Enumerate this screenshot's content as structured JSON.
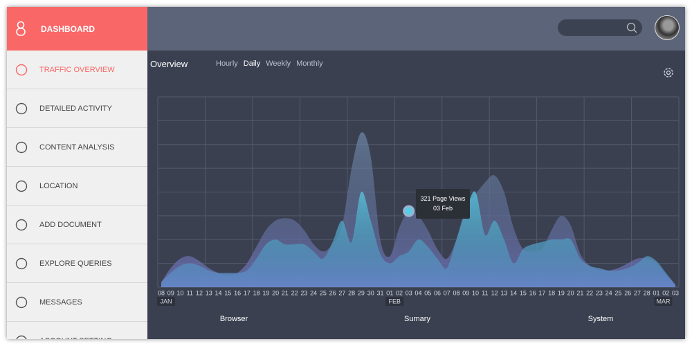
{
  "sidebar": {
    "title": "DASHBOARD",
    "items": [
      "TRAFFIC OVERVIEW",
      "DETAILED ACTIVITY",
      "CONTENT ANALYSIS",
      "LOCATION",
      "ADD DOCUMENT",
      "EXPLORE QUERIES",
      "MESSAGES",
      "ACCOUNT SETTING"
    ]
  },
  "overview": {
    "title": "Overview",
    "tabs": [
      "Hourly",
      "Daily",
      "Weekly",
      "Monthly"
    ]
  },
  "chart_data": {
    "type": "area",
    "categories": [
      "08",
      "09",
      "10",
      "11",
      "12",
      "13",
      "14",
      "15",
      "16",
      "17",
      "18",
      "19",
      "20",
      "21",
      "22",
      "23",
      "24",
      "25",
      "26",
      "27",
      "28",
      "29",
      "30",
      "31",
      "01",
      "02",
      "03",
      "04",
      "05",
      "06",
      "07",
      "08",
      "09",
      "10",
      "11",
      "12",
      "13",
      "14",
      "15",
      "16",
      "17",
      "18",
      "19",
      "20",
      "21",
      "22",
      "23",
      "24",
      "25",
      "26",
      "27",
      "28",
      "01",
      "02",
      "03"
    ],
    "month_labels": [
      "JAN",
      "FEB",
      "MAR"
    ],
    "ylim": [
      0,
      8
    ],
    "series": [
      {
        "color": "#7f9cc4",
        "values": [
          0.2,
          0.8,
          1.2,
          1.3,
          1.1,
          0.8,
          0.6,
          0.5,
          0.6,
          1.0,
          1.7,
          2.4,
          2.8,
          2.9,
          2.8,
          2.4,
          1.8,
          1.5,
          1.8,
          2.6,
          5.0,
          6.5,
          5.5,
          2.0,
          1.3,
          2.5,
          3.2,
          3.0,
          2.4,
          1.6,
          1.2,
          2.0,
          3.4,
          3.9,
          4.4,
          4.7,
          4.0,
          2.5,
          1.6,
          1.5,
          1.6,
          2.4,
          3.0,
          2.6,
          1.4,
          0.9,
          0.7,
          0.7,
          0.8,
          1.0,
          1.2,
          1.2,
          1.0,
          0.5,
          0.1
        ]
      },
      {
        "color": "#5ccbe8",
        "values": [
          0.2,
          0.6,
          0.9,
          1.0,
          0.9,
          0.7,
          0.6,
          0.6,
          0.6,
          0.7,
          1.2,
          1.8,
          2.0,
          1.8,
          1.8,
          1.8,
          1.5,
          1.2,
          1.9,
          2.8,
          1.9,
          4.0,
          2.8,
          1.4,
          1.0,
          1.3,
          1.5,
          2.0,
          1.7,
          1.2,
          0.8,
          2.0,
          3.2,
          4.0,
          2.2,
          2.8,
          2.0,
          1.0,
          1.6,
          1.8,
          1.9,
          2.0,
          2.0,
          2.0,
          1.2,
          0.9,
          0.8,
          0.7,
          0.7,
          0.8,
          1.0,
          1.3,
          1.1,
          0.6,
          0.1
        ]
      }
    ],
    "tooltip": {
      "value": "321 Page Views",
      "date": "03 Feb"
    }
  },
  "footer_tabs": [
    "Browser",
    "Sumary",
    "System"
  ]
}
